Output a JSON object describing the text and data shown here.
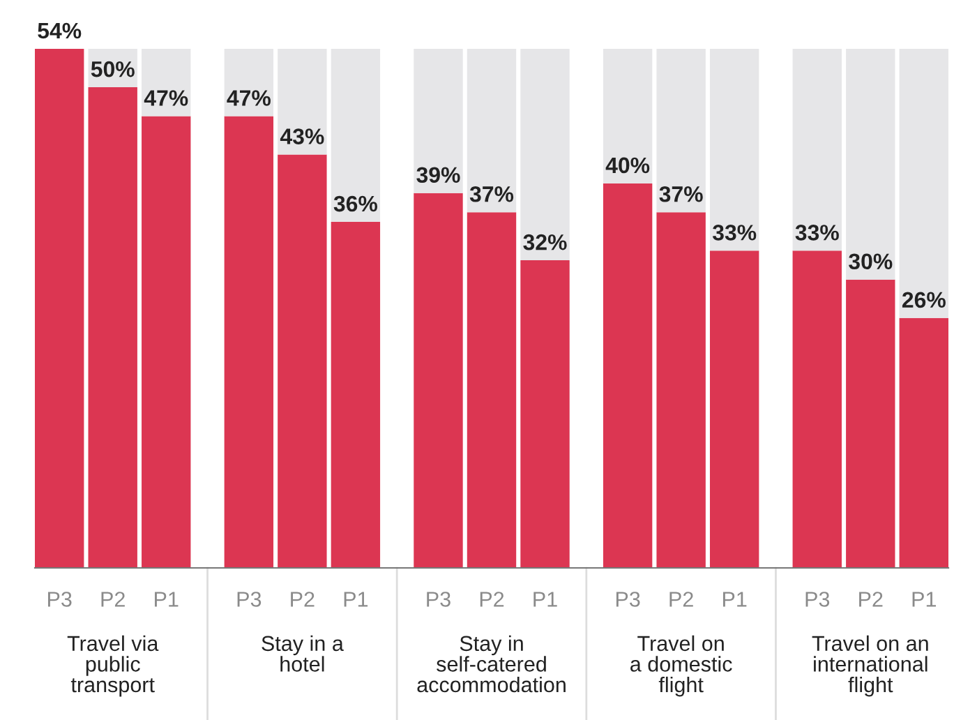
{
  "chart_data": {
    "type": "bar",
    "stacked": true,
    "categories": [
      "P3",
      "P2",
      "P1",
      "P3",
      "P2",
      "P1",
      "P3",
      "P2",
      "P1",
      "P3",
      "P2",
      "P1",
      "P3",
      "P2",
      "P1"
    ],
    "series": [
      {
        "color": "#dc3652",
        "values": [
          54,
          50,
          47,
          47,
          43,
          36,
          39,
          37,
          32,
          40,
          37,
          33,
          33,
          30,
          26
        ],
        "value_labels": [
          "54%",
          "50%",
          "47%",
          "47%",
          "43%",
          "36%",
          "39%",
          "37%",
          "32%",
          "40%",
          "37%",
          "33%",
          "33%",
          "30%",
          "26%"
        ]
      },
      {
        "color": "#e6e6e8",
        "values": [
          null,
          4,
          7,
          7,
          11,
          18,
          15,
          17,
          22,
          14,
          17,
          21,
          21,
          24,
          28
        ]
      }
    ],
    "ylim": [
      0,
      54
    ],
    "tick_labels": "x",
    "legend": false,
    "annotations": [
      "Travel via\npublic\ntransport",
      "Stay in a\nhotel",
      "Stay in\nself-catered\naccommodation",
      "Travel on\na domestic\nflight",
      "Travel on an\ninternational\nflight"
    ]
  }
}
